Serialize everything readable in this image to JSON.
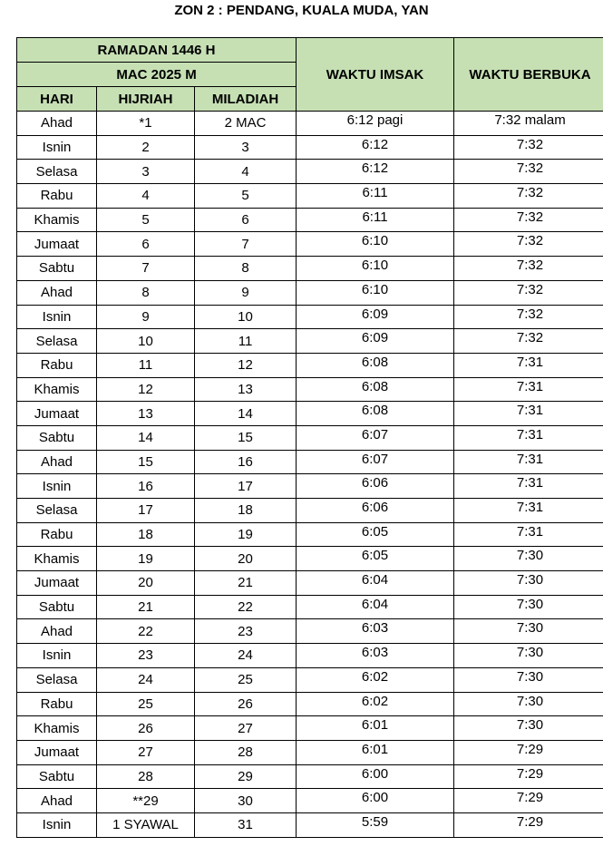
{
  "title": "ZON 2 : PENDANG, KUALA MUDA, YAN",
  "header": {
    "ramadan": "RAMADAN 1446 H",
    "month": "MAC 2025 M",
    "columns": [
      "HARI",
      "HIJRIAH",
      "MILADIAH",
      "WAKTU IMSAK",
      "WAKTU BERBUKA"
    ]
  },
  "table": {
    "rows": [
      [
        "Ahad",
        "*1",
        "2 MAC",
        "6:12 pagi",
        "7:32 malam"
      ],
      [
        "Isnin",
        "2",
        "3",
        "6:12",
        "7:32"
      ],
      [
        "Selasa",
        "3",
        "4",
        "6:12",
        "7:32"
      ],
      [
        "Rabu",
        "4",
        "5",
        "6:11",
        "7:32"
      ],
      [
        "Khamis",
        "5",
        "6",
        "6:11",
        "7:32"
      ],
      [
        "Jumaat",
        "6",
        "7",
        "6:10",
        "7:32"
      ],
      [
        "Sabtu",
        "7",
        "8",
        "6:10",
        "7:32"
      ],
      [
        "Ahad",
        "8",
        "9",
        "6:10",
        "7:32"
      ],
      [
        "Isnin",
        "9",
        "10",
        "6:09",
        "7:32"
      ],
      [
        "Selasa",
        "10",
        "11",
        "6:09",
        "7:32"
      ],
      [
        "Rabu",
        "11",
        "12",
        "6:08",
        "7:31"
      ],
      [
        "Khamis",
        "12",
        "13",
        "6:08",
        "7:31"
      ],
      [
        "Jumaat",
        "13",
        "14",
        "6:08",
        "7:31"
      ],
      [
        "Sabtu",
        "14",
        "15",
        "6:07",
        "7:31"
      ],
      [
        "Ahad",
        "15",
        "16",
        "6:07",
        "7:31"
      ],
      [
        "Isnin",
        "16",
        "17",
        "6:06",
        "7:31"
      ],
      [
        "Selasa",
        "17",
        "18",
        "6:06",
        "7:31"
      ],
      [
        "Rabu",
        "18",
        "19",
        "6:05",
        "7:31"
      ],
      [
        "Khamis",
        "19",
        "20",
        "6:05",
        "7:30"
      ],
      [
        "Jumaat",
        "20",
        "21",
        "6:04",
        "7:30"
      ],
      [
        "Sabtu",
        "21",
        "22",
        "6:04",
        "7:30"
      ],
      [
        "Ahad",
        "22",
        "23",
        "6:03",
        "7:30"
      ],
      [
        "Isnin",
        "23",
        "24",
        "6:03",
        "7:30"
      ],
      [
        "Selasa",
        "24",
        "25",
        "6:02",
        "7:30"
      ],
      [
        "Rabu",
        "25",
        "26",
        "6:02",
        "7:30"
      ],
      [
        "Khamis",
        "26",
        "27",
        "6:01",
        "7:30"
      ],
      [
        "Jumaat",
        "27",
        "28",
        "6:01",
        "7:29"
      ],
      [
        "Sabtu",
        "28",
        "29",
        "6:00",
        "7:29"
      ],
      [
        "Ahad",
        "**29",
        "30",
        "6:00",
        "7:29"
      ],
      [
        "Isnin",
        "1 SYAWAL",
        "31",
        "5:59",
        "7:29"
      ]
    ]
  }
}
